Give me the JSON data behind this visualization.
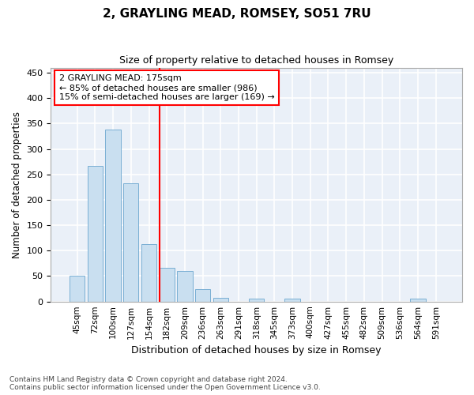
{
  "title": "2, GRAYLING MEAD, ROMSEY, SO51 7RU",
  "subtitle": "Size of property relative to detached houses in Romsey",
  "xlabel": "Distribution of detached houses by size in Romsey",
  "ylabel": "Number of detached properties",
  "bar_color": "#c9dff0",
  "bar_edge_color": "#7aafd4",
  "background_color": "#eaf0f8",
  "grid_color": "#ffffff",
  "categories": [
    "45sqm",
    "72sqm",
    "100sqm",
    "127sqm",
    "154sqm",
    "182sqm",
    "209sqm",
    "236sqm",
    "263sqm",
    "291sqm",
    "318sqm",
    "345sqm",
    "373sqm",
    "400sqm",
    "427sqm",
    "455sqm",
    "482sqm",
    "509sqm",
    "536sqm",
    "564sqm",
    "591sqm"
  ],
  "values": [
    50,
    267,
    338,
    232,
    113,
    67,
    60,
    25,
    8,
    0,
    5,
    0,
    5,
    0,
    0,
    0,
    0,
    0,
    0,
    5,
    0
  ],
  "property_line_label": "2 GRAYLING MEAD: 175sqm",
  "annotation_line1": "← 85% of detached houses are smaller (986)",
  "annotation_line2": "15% of semi-detached houses are larger (169) →",
  "ylim": [
    0,
    460
  ],
  "yticks": [
    0,
    50,
    100,
    150,
    200,
    250,
    300,
    350,
    400,
    450
  ],
  "footer_line1": "Contains HM Land Registry data © Crown copyright and database right 2024.",
  "footer_line2": "Contains public sector information licensed under the Open Government Licence v3.0."
}
